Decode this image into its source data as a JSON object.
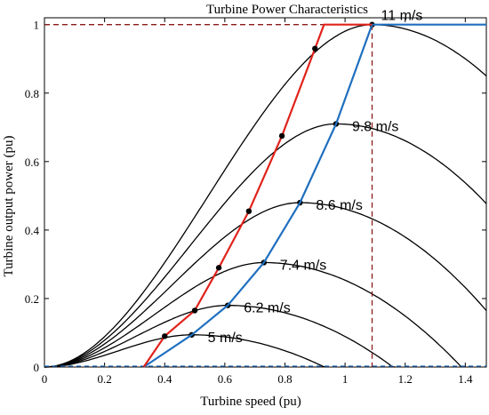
{
  "chart_data": {
    "type": "line",
    "title": "Turbine Power Characteristics",
    "xlabel": "Turbine speed (pu)",
    "ylabel": "Turbine output power (pu)",
    "xlim": [
      0,
      1.47
    ],
    "ylim": [
      0,
      1.02
    ],
    "xticks": [
      "0",
      "0.2",
      "0.4",
      "0.6",
      "0.8",
      "1",
      "1.2",
      "1.4"
    ],
    "yticks": [
      "0",
      "0.2",
      "0.4",
      "0.6",
      "0.8",
      "1"
    ],
    "grid": false,
    "series": [
      {
        "label": "5 m/s",
        "peak_speed": 0.49,
        "peak_power": 0.094,
        "color": "#000000"
      },
      {
        "label": "6.2 m/s",
        "peak_speed": 0.61,
        "peak_power": 0.18,
        "color": "#000000"
      },
      {
        "label": "7.4 m/s",
        "peak_speed": 0.73,
        "peak_power": 0.305,
        "color": "#000000"
      },
      {
        "label": "8.6 m/s",
        "peak_speed": 0.85,
        "peak_power": 0.48,
        "color": "#000000"
      },
      {
        "label": "9.8 m/s",
        "peak_speed": 0.97,
        "peak_power": 0.71,
        "color": "#000000"
      },
      {
        "label": "11 m/s",
        "peak_speed": 1.09,
        "peak_power": 1.0,
        "color": "#000000"
      }
    ],
    "optimal_curve": {
      "color": "#1f6fbf",
      "points": [
        [
          0.33,
          0
        ],
        [
          0.49,
          0.094
        ],
        [
          0.61,
          0.18
        ],
        [
          0.73,
          0.305
        ],
        [
          0.85,
          0.48
        ],
        [
          0.97,
          0.71
        ],
        [
          1.09,
          1.0
        ],
        [
          1.47,
          1.0
        ]
      ]
    },
    "operating_curve": {
      "color": "#e0231c",
      "points": [
        [
          0.33,
          0
        ],
        [
          0.4,
          0.09
        ],
        [
          0.5,
          0.165
        ],
        [
          0.58,
          0.29
        ],
        [
          0.68,
          0.455
        ],
        [
          0.79,
          0.675
        ],
        [
          0.9,
          0.93
        ],
        [
          0.93,
          1.0
        ],
        [
          1.09,
          1.0
        ]
      ]
    },
    "operating_markers": [
      [
        0.4,
        0.09
      ],
      [
        0.5,
        0.165
      ],
      [
        0.58,
        0.29
      ],
      [
        0.68,
        0.455
      ],
      [
        0.79,
        0.675
      ],
      [
        0.9,
        0.93
      ]
    ],
    "rated_speed": 1.09,
    "rated_power": 1.0,
    "reference_color": "#8b1a1a"
  }
}
